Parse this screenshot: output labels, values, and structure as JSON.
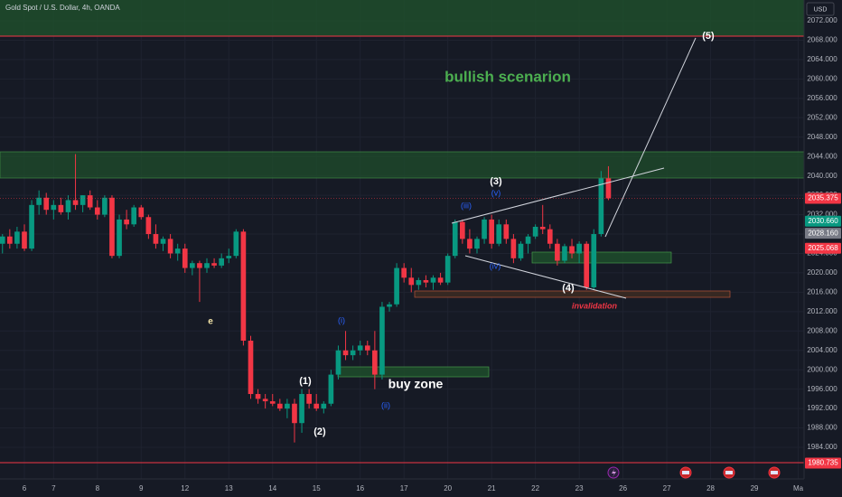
{
  "chart_data": {
    "type": "candlestick",
    "header": "Gold Spot / U.S. Dollar, 4h, OANDA",
    "currency": "USD",
    "up_color": "#089981",
    "down_color": "#f23645",
    "grid": true,
    "xlim": [
      -0.34,
      109.8
    ],
    "ylim": [
      1977.48,
      2076.29
    ],
    "xticks": [
      {
        "value": 3,
        "label": "6"
      },
      {
        "value": 7,
        "label": "7"
      },
      {
        "value": 13,
        "label": "8"
      },
      {
        "value": 19,
        "label": "9"
      },
      {
        "value": 25,
        "label": "12"
      },
      {
        "value": 31,
        "label": "13"
      },
      {
        "value": 37,
        "label": "14"
      },
      {
        "value": 43,
        "label": "15"
      },
      {
        "value": 49,
        "label": "16"
      },
      {
        "value": 55,
        "label": "17"
      },
      {
        "value": 61,
        "label": "20"
      },
      {
        "value": 67,
        "label": "21"
      },
      {
        "value": 73,
        "label": "22"
      },
      {
        "value": 79,
        "label": "23"
      },
      {
        "value": 85,
        "label": "26"
      },
      {
        "value": 91,
        "label": "27"
      },
      {
        "value": 97,
        "label": "28"
      },
      {
        "value": 103,
        "label": "29"
      },
      {
        "value": 109,
        "label": "Ma"
      }
    ],
    "yticks": [
      {
        "value": 2072,
        "label": "2072.000"
      },
      {
        "value": 2068,
        "label": "2068.000"
      },
      {
        "value": 2064,
        "label": "2064.000"
      },
      {
        "value": 2060,
        "label": "2060.000"
      },
      {
        "value": 2056,
        "label": "2056.000"
      },
      {
        "value": 2052,
        "label": "2052.000"
      },
      {
        "value": 2048,
        "label": "2048.000"
      },
      {
        "value": 2044,
        "label": "2044.000"
      },
      {
        "value": 2040,
        "label": "2040.000"
      },
      {
        "value": 2036,
        "label": "2036.000"
      },
      {
        "value": 2032,
        "label": "2032.000"
      },
      {
        "value": 2028,
        "label": "2028.000"
      },
      {
        "value": 2024,
        "label": "2024.000"
      },
      {
        "value": 2020,
        "label": "2020.000"
      },
      {
        "value": 2016,
        "label": "2016.000"
      },
      {
        "value": 2012,
        "label": "2012.000"
      },
      {
        "value": 2008,
        "label": "2008.000"
      },
      {
        "value": 2004,
        "label": "2004.000"
      },
      {
        "value": 2000,
        "label": "2000.000"
      },
      {
        "value": 1996,
        "label": "1996.000"
      },
      {
        "value": 1992,
        "label": "1992.000"
      },
      {
        "value": 1988,
        "label": "1988.000"
      },
      {
        "value": 1984,
        "label": "1984.000"
      }
    ],
    "price_tags": [
      {
        "value": 2035.375,
        "color": "#f23645"
      },
      {
        "value": 2030.66,
        "label": "2030.660",
        "color": "#089981"
      },
      {
        "value": 2028.16,
        "label": "2028.160",
        "color": "#787b86"
      },
      {
        "value": 2025.068,
        "label": "2025.068",
        "color": "#f23645"
      },
      {
        "value": 1980.735,
        "label": "1980.735",
        "color": "#f23645"
      }
    ],
    "candles": [
      [
        2026,
        2028,
        2024,
        2027.5
      ],
      [
        2027.5,
        2029,
        2025,
        2026
      ],
      [
        2026,
        2029.5,
        2025,
        2028.5
      ],
      [
        2028.5,
        2030,
        2024.5,
        2025
      ],
      [
        2025,
        2035,
        2024.5,
        2034
      ],
      [
        2034,
        2037,
        2032,
        2035.5
      ],
      [
        2035.5,
        2036.5,
        2032,
        2033
      ],
      [
        2033,
        2035,
        2031,
        2034
      ],
      [
        2034,
        2035.5,
        2032,
        2032.5
      ],
      [
        2032.5,
        2036,
        2031,
        2035
      ],
      [
        2035,
        2044.5,
        2033,
        2034
      ],
      [
        2034,
        2036,
        2032.5,
        2036
      ],
      [
        2036,
        2037,
        2033,
        2033.5
      ],
      [
        2033.5,
        2035,
        2031,
        2032
      ],
      [
        2032,
        2036,
        2031.5,
        2035.5
      ],
      [
        2035.5,
        2036,
        2023,
        2023.5
      ],
      [
        2023.5,
        2032,
        2023,
        2031
      ],
      [
        2031,
        2033,
        2029,
        2030
      ],
      [
        2030,
        2034,
        2029.5,
        2033.5
      ],
      [
        2033.5,
        2034,
        2031,
        2031.5
      ],
      [
        2031.5,
        2032,
        2027,
        2028
      ],
      [
        2028,
        2030,
        2025,
        2026
      ],
      [
        2026,
        2027.5,
        2024.5,
        2027
      ],
      [
        2027,
        2028,
        2023,
        2024
      ],
      [
        2024,
        2026,
        2022.5,
        2025
      ],
      [
        2025,
        2026,
        2020,
        2021
      ],
      [
        2021,
        2022.5,
        2019.5,
        2022
      ],
      [
        2022,
        2022.5,
        2014,
        2021
      ],
      [
        2021,
        2023,
        2020,
        2022
      ],
      [
        2022,
        2023,
        2021,
        2021.5
      ],
      [
        2021.5,
        2024,
        2021,
        2023
      ],
      [
        2023,
        2025,
        2022,
        2023.5
      ],
      [
        2023.5,
        2029,
        2023,
        2028.5
      ],
      [
        2028.5,
        2029,
        2005,
        2006
      ],
      [
        2006,
        2007,
        1994,
        1995
      ],
      [
        1995,
        1996,
        1993,
        1994
      ],
      [
        1994,
        1995,
        1992,
        1993.5
      ],
      [
        1993.5,
        1995,
        1992.5,
        1993
      ],
      [
        1993,
        1994,
        1991.5,
        1992
      ],
      [
        1992,
        1994,
        1990,
        1993
      ],
      [
        1993,
        1994,
        1985,
        1989
      ],
      [
        1989,
        1996,
        1987,
        1995
      ],
      [
        1995,
        1996,
        1992,
        1993
      ],
      [
        1993,
        1995,
        1991.5,
        1992
      ],
      [
        1992,
        1993.5,
        1991,
        1993
      ],
      [
        1993,
        2000,
        1992.5,
        1999
      ],
      [
        1999,
        2005,
        1998,
        2004
      ],
      [
        2004,
        2008,
        2002,
        2003
      ],
      [
        2003,
        2005,
        2002,
        2004
      ],
      [
        2004,
        2006,
        2003,
        2005
      ],
      [
        2005,
        2006,
        2003,
        2004
      ],
      [
        2004,
        2008,
        1996,
        1999
      ],
      [
        1999,
        2014,
        1998,
        2013
      ],
      [
        2013,
        2014,
        2012,
        2013.5
      ],
      [
        2013.5,
        2022,
        2013,
        2021
      ],
      [
        2021,
        2022,
        2018,
        2019
      ],
      [
        2019,
        2021,
        2016,
        2017.5
      ],
      [
        2017.5,
        2019,
        2016.5,
        2018.5
      ],
      [
        2018.5,
        2019.5,
        2017,
        2018
      ],
      [
        2018,
        2019.5,
        2016.5,
        2019
      ],
      [
        2019,
        2020,
        2017.5,
        2018
      ],
      [
        2018,
        2024,
        2017.5,
        2023.5
      ],
      [
        2023.5,
        2031,
        2023,
        2030.5
      ],
      [
        2030.5,
        2031,
        2026,
        2027
      ],
      [
        2027,
        2029,
        2024,
        2025
      ],
      [
        2025,
        2027.5,
        2024,
        2027
      ],
      [
        2027,
        2031.5,
        2026,
        2031
      ],
      [
        2031,
        2032,
        2025,
        2026
      ],
      [
        2026,
        2031,
        2025.5,
        2030
      ],
      [
        2030,
        2031,
        2026,
        2027
      ],
      [
        2027,
        2028,
        2022,
        2023
      ],
      [
        2023,
        2026.5,
        2022.5,
        2026
      ],
      [
        2026,
        2028,
        2024,
        2027.5
      ],
      [
        2027.5,
        2030,
        2027,
        2029.5
      ],
      [
        2029.5,
        2034,
        2028,
        2029
      ],
      [
        2029,
        2030,
        2025,
        2026
      ],
      [
        2026,
        2027,
        2021.5,
        2022.5
      ],
      [
        2022.5,
        2026,
        2022,
        2025.5
      ],
      [
        2025.5,
        2027,
        2023,
        2024
      ],
      [
        2024,
        2026.5,
        2022,
        2026
      ],
      [
        2026,
        2026.5,
        2016.5,
        2017
      ],
      [
        2017,
        2029,
        2016.5,
        2028
      ],
      [
        2028,
        2041,
        2027.5,
        2039.5
      ],
      [
        2039.5,
        2042,
        2035,
        2035.375
      ]
    ],
    "annotations": [
      "bullish scenarion",
      "buy zone",
      "invalidation",
      "e",
      "(1)",
      "(2)",
      "(3)",
      "(4)",
      "(5)",
      "(i)",
      "(ii)",
      "(iii)",
      "(iv)",
      "(v)"
    ]
  }
}
